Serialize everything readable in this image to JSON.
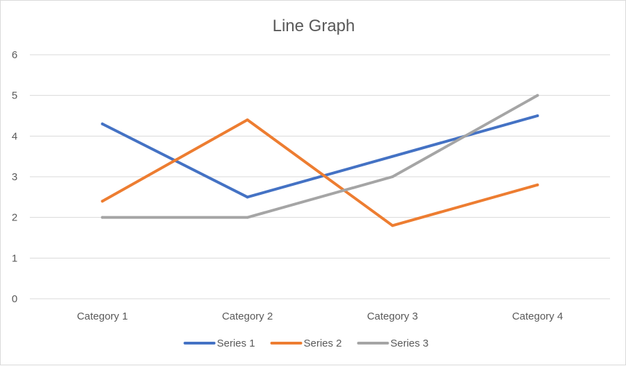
{
  "chart_data": {
    "type": "line",
    "title": "Line Graph",
    "categories": [
      "Category 1",
      "Category 2",
      "Category 3",
      "Category 4"
    ],
    "ylim": [
      0,
      6
    ],
    "yticks": [
      0,
      1,
      2,
      3,
      4,
      5,
      6
    ],
    "grid": true,
    "legend": "bottom",
    "series": [
      {
        "name": "Series 1",
        "values": [
          4.3,
          2.5,
          3.5,
          4.5
        ],
        "color": "#4472C4"
      },
      {
        "name": "Series 2",
        "values": [
          2.4,
          4.4,
          1.8,
          2.8
        ],
        "color": "#ED7D31"
      },
      {
        "name": "Series 3",
        "values": [
          2.0,
          2.0,
          3.0,
          5.0
        ],
        "color": "#A5A5A5"
      }
    ]
  }
}
